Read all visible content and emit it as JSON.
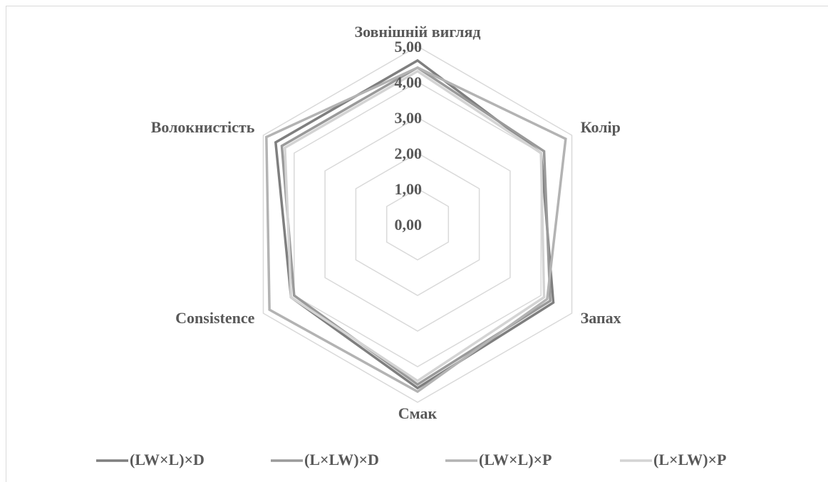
{
  "chart_data": {
    "type": "radar",
    "categories": [
      "Зовнішній вигляд",
      "Колір",
      "Запах",
      "Смак",
      "Consistence",
      "Волокнистість"
    ],
    "series": [
      {
        "name": "(LW×L)×D",
        "color": "#7f7f7f",
        "values": [
          4.6,
          4.0,
          4.4,
          4.6,
          4.1,
          4.6
        ]
      },
      {
        "name": "(L×LW)×D",
        "color": "#9a9a9a",
        "values": [
          4.4,
          4.1,
          4.3,
          4.5,
          4.0,
          4.4
        ]
      },
      {
        "name": "(LW×L)×P",
        "color": "#b3b3b3",
        "values": [
          4.4,
          4.8,
          4.2,
          4.7,
          4.8,
          4.9
        ]
      },
      {
        "name": "(L×LW)×P",
        "color": "#d4d4d4",
        "values": [
          4.3,
          4.0,
          4.1,
          4.4,
          4.1,
          4.3
        ]
      }
    ],
    "rlim": [
      0,
      5
    ],
    "rticks": [
      {
        "value": 0,
        "label": "0,00"
      },
      {
        "value": 1,
        "label": "1,00"
      },
      {
        "value": 2,
        "label": "2,00"
      },
      {
        "value": 3,
        "label": "3,00"
      },
      {
        "value": 4,
        "label": "4,00"
      },
      {
        "value": 5,
        "label": "5,00"
      }
    ],
    "grid": true,
    "legend": "bottom"
  }
}
